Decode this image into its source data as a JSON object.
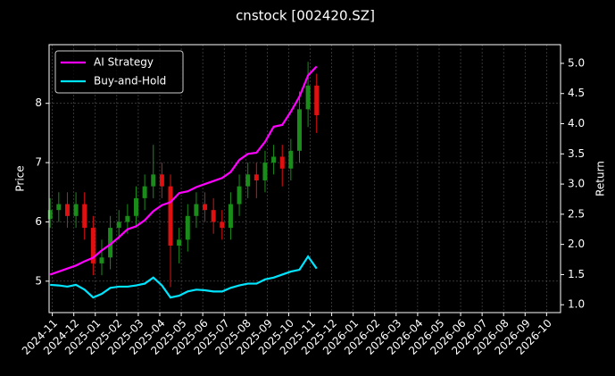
{
  "chart_data": {
    "type": "candlestick",
    "title": "cnstock [002420.SZ]",
    "y_label": "Price",
    "y2_label": "Return",
    "x": [
      -0.1,
      0.3,
      0.7,
      1.1,
      1.5,
      1.9,
      2.3,
      2.7,
      3.1,
      3.5,
      3.9,
      4.3,
      4.7,
      5.1,
      5.5,
      5.9,
      6.3,
      6.7,
      7.1,
      7.5,
      7.9,
      8.3,
      8.7,
      9.1,
      9.5,
      9.9,
      10.3,
      10.7,
      11.1,
      11.5,
      11.9,
      12.3
    ],
    "candles": {
      "up_color": "#1a8c1a",
      "down_color": "#e01010",
      "open": [
        6.05,
        6.2,
        6.3,
        6.1,
        6.3,
        5.9,
        5.3,
        5.4,
        5.9,
        6.0,
        6.1,
        6.4,
        6.6,
        6.8,
        6.6,
        5.6,
        5.7,
        6.1,
        6.3,
        6.2,
        6.0,
        5.9,
        6.3,
        6.6,
        6.8,
        6.7,
        7.0,
        7.1,
        6.9,
        7.2,
        7.9,
        8.3
      ],
      "high": [
        6.4,
        6.5,
        6.5,
        6.5,
        6.5,
        6.1,
        5.7,
        6.1,
        6.2,
        6.3,
        6.6,
        6.8,
        7.3,
        7.0,
        6.8,
        5.9,
        6.3,
        6.5,
        6.5,
        6.4,
        6.2,
        6.5,
        6.8,
        7.0,
        7.0,
        7.2,
        7.3,
        7.3,
        7.4,
        8.2,
        8.7,
        8.5
      ],
      "low": [
        5.9,
        6.0,
        5.9,
        5.9,
        5.7,
        5.1,
        5.1,
        5.2,
        5.7,
        5.8,
        5.9,
        6.2,
        6.4,
        6.4,
        4.9,
        5.3,
        5.5,
        5.9,
        6.0,
        5.8,
        5.7,
        5.7,
        6.1,
        6.4,
        6.4,
        6.5,
        6.8,
        6.6,
        6.7,
        7.0,
        7.6,
        7.5
      ],
      "close": [
        6.2,
        6.3,
        6.1,
        6.3,
        5.9,
        5.3,
        5.4,
        5.9,
        6.0,
        6.1,
        6.4,
        6.6,
        6.8,
        6.6,
        5.6,
        5.7,
        6.1,
        6.3,
        6.2,
        6.0,
        5.9,
        6.3,
        6.6,
        6.8,
        6.7,
        7.0,
        7.1,
        6.9,
        7.2,
        7.9,
        8.3,
        7.8
      ]
    },
    "series": [
      {
        "name": "AI Strategy",
        "color": "#ff00ff",
        "axis": "y2",
        "values": [
          1.5,
          1.55,
          1.6,
          1.65,
          1.72,
          1.78,
          1.9,
          2.0,
          2.12,
          2.25,
          2.3,
          2.4,
          2.55,
          2.65,
          2.7,
          2.85,
          2.88,
          2.95,
          3.0,
          3.05,
          3.1,
          3.2,
          3.4,
          3.5,
          3.52,
          3.7,
          3.95,
          3.98,
          4.2,
          4.45,
          4.8,
          4.95
        ]
      },
      {
        "name": "Buy-and-Hold",
        "color": "#00e5ff",
        "axis": "y2",
        "values": [
          1.33,
          1.32,
          1.3,
          1.33,
          1.25,
          1.12,
          1.18,
          1.28,
          1.3,
          1.3,
          1.32,
          1.35,
          1.45,
          1.32,
          1.12,
          1.15,
          1.22,
          1.25,
          1.24,
          1.22,
          1.22,
          1.28,
          1.32,
          1.35,
          1.35,
          1.42,
          1.45,
          1.5,
          1.55,
          1.58,
          1.8,
          1.6
        ]
      }
    ],
    "xlim": [
      -0.15,
      23.65
    ],
    "xticks": [
      {
        "value": 0,
        "label": "2024-11"
      },
      {
        "value": 1,
        "label": "2024-12"
      },
      {
        "value": 2,
        "label": "2025-01"
      },
      {
        "value": 3,
        "label": "2025-02"
      },
      {
        "value": 4,
        "label": "2025-03"
      },
      {
        "value": 5,
        "label": "2025-04"
      },
      {
        "value": 6,
        "label": "2025-05"
      },
      {
        "value": 7,
        "label": "2025-06"
      },
      {
        "value": 8,
        "label": "2025-07"
      },
      {
        "value": 9,
        "label": "2025-08"
      },
      {
        "value": 10,
        "label": "2025-09"
      },
      {
        "value": 11,
        "label": "2025-10"
      },
      {
        "value": 12,
        "label": "2025-11"
      },
      {
        "value": 13,
        "label": "2025-12"
      },
      {
        "value": 14,
        "label": "2026-01"
      },
      {
        "value": 15,
        "label": "2026-02"
      },
      {
        "value": 16,
        "label": "2026-03"
      },
      {
        "value": 17,
        "label": "2026-04"
      },
      {
        "value": 18,
        "label": "2026-05"
      },
      {
        "value": 19,
        "label": "2026-06"
      },
      {
        "value": 20,
        "label": "2026-07"
      },
      {
        "value": 21,
        "label": "2026-08"
      },
      {
        "value": 22,
        "label": "2026-09"
      },
      {
        "value": 23,
        "label": "2026-10"
      }
    ],
    "ylim": [
      4.47,
      8.99
    ],
    "yticks": [
      5,
      6,
      7,
      8
    ],
    "y2lim": [
      0.87,
      5.31
    ],
    "y2ticks": [
      {
        "value": 1,
        "label": "1.0"
      },
      1.5,
      {
        "value": 2,
        "label": "2.0"
      },
      2.5,
      {
        "value": 3,
        "label": "3.0"
      },
      3.5,
      {
        "value": 4,
        "label": "4.0"
      },
      4.5,
      {
        "value": 5,
        "label": "5.0"
      }
    ],
    "grid": true,
    "legend_position": "upper-left"
  }
}
